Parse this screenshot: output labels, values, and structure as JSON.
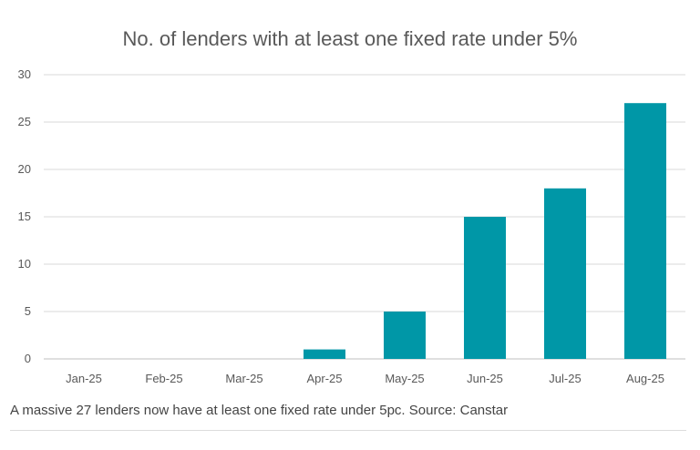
{
  "chart_data": {
    "type": "bar",
    "title": "No. of lenders with at least one fixed rate under 5%",
    "categories": [
      "Jan-25",
      "Feb-25",
      "Mar-25",
      "Apr-25",
      "May-25",
      "Jun-25",
      "Jul-25",
      "Aug-25"
    ],
    "values": [
      0,
      0,
      0,
      1,
      5,
      15,
      18,
      27
    ],
    "ylim": [
      0,
      30
    ],
    "yticks": [
      0,
      5,
      10,
      15,
      20,
      25,
      30
    ],
    "grid": true,
    "bar_color": "#0097A7",
    "xlabel": "",
    "ylabel": ""
  },
  "caption": "A massive 27 lenders now have at least one fixed rate under 5pc. Source: Canstar"
}
